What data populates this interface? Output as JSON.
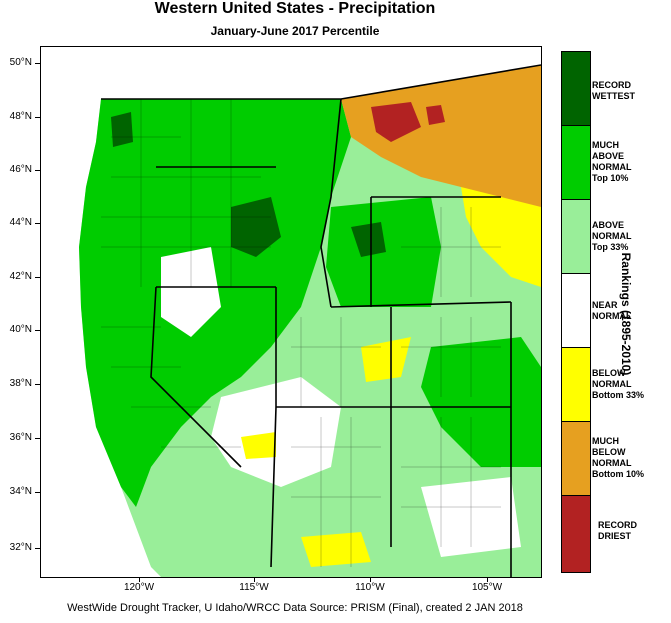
{
  "title": "Western United States - Precipitation",
  "subtitle": "January-June 2017 Percentile",
  "latitude_labels": [
    "50°N",
    "48°N",
    "46°N",
    "44°N",
    "42°N",
    "40°N",
    "38°N",
    "36°N",
    "34°N",
    "32°N"
  ],
  "longitude_labels": [
    "120°W",
    "115°W",
    "110°W",
    "105°W"
  ],
  "legend": {
    "title": "Rankings (1895-2010)",
    "items": [
      {
        "label_lines": [
          "RECORD",
          "WETTEST"
        ],
        "color": "#006400"
      },
      {
        "label_lines": [
          "MUCH",
          "ABOVE",
          "NORMAL",
          "Top 10%"
        ],
        "color": "#00cc00"
      },
      {
        "label_lines": [
          "ABOVE",
          "NORMAL",
          "Top 33%"
        ],
        "color": "#99ee99"
      },
      {
        "label_lines": [
          "NEAR",
          "NORMAL"
        ],
        "color": "#ffffff"
      },
      {
        "label_lines": [
          "BELOW",
          "NORMAL",
          "Bottom 33%"
        ],
        "color": "#ffff00"
      },
      {
        "label_lines": [
          "MUCH",
          "BELOW",
          "NORMAL",
          "Bottom 10%"
        ],
        "color": "#e6a020"
      },
      {
        "label_lines": [
          "RECORD",
          "DRIEST"
        ],
        "color": "#b22222"
      }
    ]
  },
  "footer": "WestWide Drought Tracker, U Idaho/WRCC Data Source: PRISM (Final), created  2 JAN 2018"
}
